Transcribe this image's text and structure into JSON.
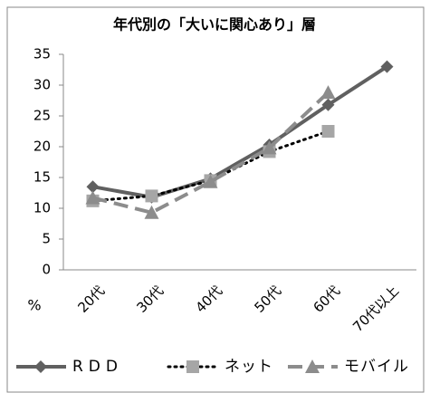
{
  "chart_data": {
    "type": "line",
    "title": "年代別の「大いに関心あり」層",
    "y_label": "%",
    "categories": [
      "20代",
      "30代",
      "40代",
      "50代",
      "60代",
      "70代以上"
    ],
    "series": [
      {
        "name": "RDD",
        "color": "#606060",
        "line_style": "solid",
        "marker": "diamond",
        "values": [
          13.5,
          11.8,
          14.8,
          20.3,
          26.8,
          33.0
        ]
      },
      {
        "name": "ネット",
        "color": "#a6a6a6",
        "line_style": "dotted",
        "marker": "square",
        "values": [
          11.2,
          12.0,
          14.5,
          19.2,
          22.5,
          null
        ]
      },
      {
        "name": "モバイル",
        "color": "#8c8c8c",
        "line_style": "dashed",
        "marker": "triangle",
        "values": [
          11.7,
          9.3,
          14.3,
          19.8,
          28.8,
          null
        ]
      }
    ],
    "ylim": [
      0,
      35
    ],
    "yticks": [
      0,
      5,
      10,
      15,
      20,
      25,
      30,
      35
    ],
    "grid": false
  }
}
